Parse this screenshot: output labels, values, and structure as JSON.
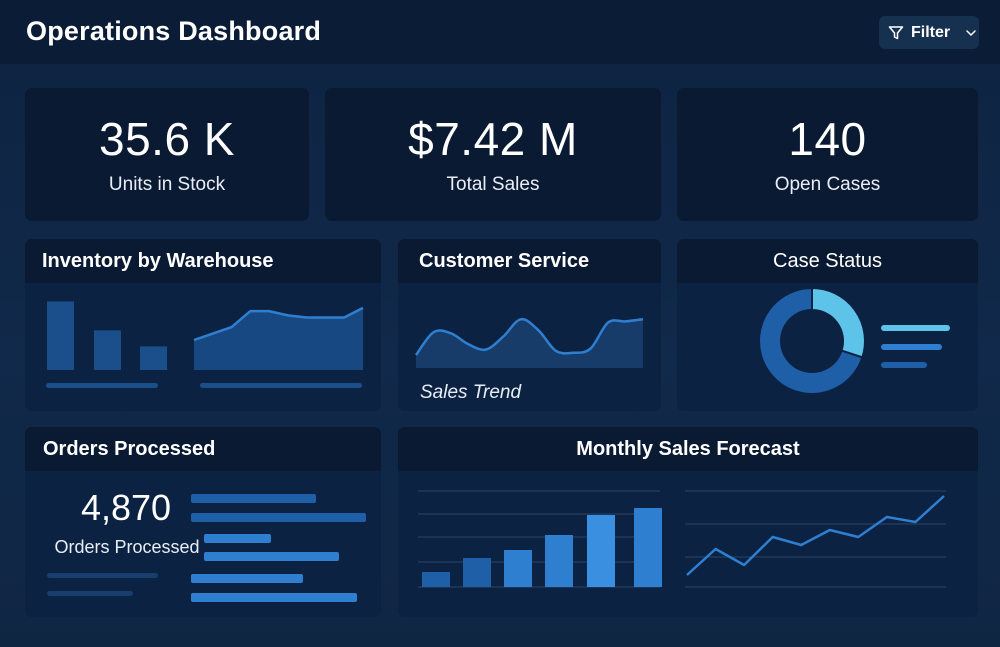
{
  "app": {
    "title": "Operations Dashboard"
  },
  "filter": {
    "label": "Filter",
    "icon": "funnel-icon",
    "dropdown_icon": "chevron-down-icon"
  },
  "colors": {
    "background": "#0e2440",
    "card": "#0b1d38",
    "accent_dark": "#1a4f8c",
    "accent": "#2f7fd1",
    "accent_light": "#5ec3e8"
  },
  "kpis": [
    {
      "value": "35.6 K",
      "label": "Units in Stock"
    },
    {
      "value": "$7.42 M",
      "label": "Total Sales"
    },
    {
      "value": "140",
      "label": "Open Cases"
    }
  ],
  "panels": {
    "inventory": {
      "title": "Inventory by Warehouse"
    },
    "customer_service": {
      "title": "Customer Service",
      "trend_label": "Sales Trend"
    },
    "case_status": {
      "title": "Case Status"
    },
    "orders": {
      "title": "Orders Processed",
      "value": "4,870",
      "label": "Orders Processed"
    },
    "forecast": {
      "title": "Monthly Sales Forecast"
    }
  },
  "chart_data": [
    {
      "type": "bar",
      "panel": "inventory",
      "values": [
        64,
        37,
        22
      ],
      "ylim": [
        0,
        70
      ]
    },
    {
      "type": "area",
      "panel": "inventory",
      "values": [
        28,
        34,
        40,
        55,
        55,
        51,
        49,
        49,
        49,
        58
      ],
      "ylim": [
        0,
        70
      ]
    },
    {
      "type": "area",
      "panel": "customer_service",
      "values": [
        12,
        33,
        32,
        22,
        17,
        29,
        45,
        35,
        16,
        14,
        18,
        42,
        43,
        45
      ],
      "ylim": [
        0,
        60
      ]
    },
    {
      "type": "pie",
      "panel": "case_status",
      "values": [
        0.3,
        0.7
      ]
    },
    {
      "type": "bar",
      "panel": "forecast",
      "values": [
        15,
        29,
        37,
        52,
        72,
        79
      ],
      "ylim": [
        0,
        100
      ]
    },
    {
      "type": "line",
      "panel": "forecast",
      "values": [
        12,
        38,
        22,
        50,
        42,
        57,
        50,
        70,
        65,
        91
      ],
      "ylim": [
        0,
        100
      ]
    }
  ]
}
